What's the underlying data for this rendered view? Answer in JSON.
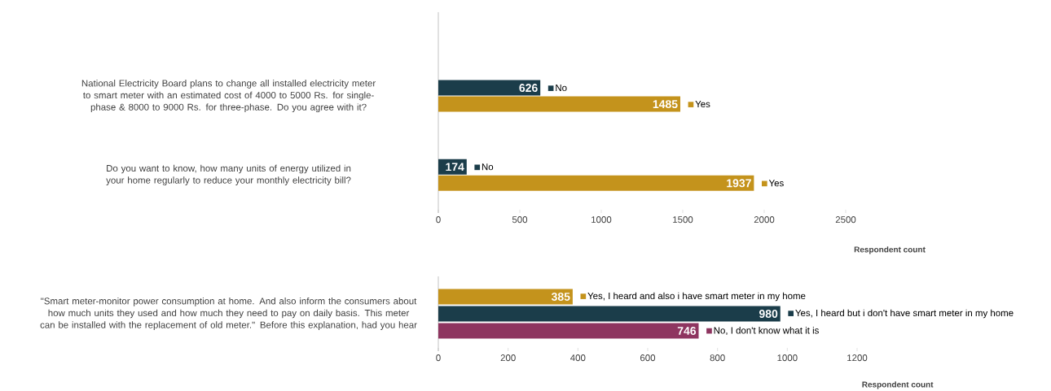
{
  "chart_data": [
    {
      "type": "bar",
      "orientation": "horizontal",
      "categories": [
        "National Electricity Board plans to change all installed electricity meter to smart meter with an estimated cost of 4000 to 5000 Rs. for single-phase & 8000 to 9000 Rs. for three-phase. Do you agree with it?",
        "Do you want to know, how many units of energy utilized in your home regularly to reduce your monthly electricity bill?"
      ],
      "series": [
        {
          "name": "No",
          "color": "#1b3d4a",
          "values": [
            626,
            174
          ]
        },
        {
          "name": "Yes",
          "color": "#c4931c",
          "values": [
            1485,
            1937
          ]
        }
      ],
      "xlim": [
        0,
        2500
      ],
      "xticks": [
        0,
        500,
        1000,
        1500,
        2000,
        2500
      ],
      "xlabel": "Respondent count",
      "data_labels": true,
      "legend": "bottom left"
    },
    {
      "type": "bar",
      "orientation": "horizontal",
      "categories": [
        "\"Smart meter-monitor power consumption at home. And also inform the consumers about how much units they used and how much they need to pay on daily basis. This meter can be installed with the replacement of old meter.\" Before this explanation, had you hear"
      ],
      "series": [
        {
          "name": "Yes, I heard and also i have smart meter in my home",
          "color": "#c4931c",
          "values": [
            385
          ]
        },
        {
          "name": "Yes, I heard but i don't have smart meter in my home",
          "color": "#1b3d4a",
          "values": [
            980
          ]
        },
        {
          "name": "No, I don't know what it is",
          "color": "#8e3560",
          "values": [
            746
          ]
        }
      ],
      "xlim": [
        0,
        1200
      ],
      "xticks": [
        0,
        200,
        400,
        600,
        800,
        1000,
        1200
      ],
      "xlabel": "Respondent count",
      "data_labels": true,
      "legend": "right"
    }
  ]
}
